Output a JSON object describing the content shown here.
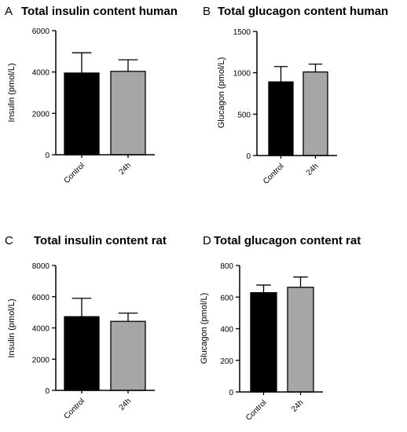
{
  "chart_data": [
    {
      "panel": "A",
      "type": "bar",
      "title": "Total insulin content human",
      "ylabel": "Insulin (pmol/L)",
      "categories": [
        "Control",
        "24h"
      ],
      "values": [
        3950,
        4030
      ],
      "errors": [
        980,
        560
      ],
      "colors": [
        "#000000",
        "#a6a6a6"
      ],
      "ylim": [
        0,
        6000
      ],
      "yticks": [
        0,
        2000,
        4000,
        6000
      ]
    },
    {
      "panel": "B",
      "type": "bar",
      "title": "Total glucagon content human",
      "ylabel": "Glucagon (pmol/L)",
      "categories": [
        "Control",
        "24h"
      ],
      "values": [
        890,
        1010
      ],
      "errors": [
        185,
        95
      ],
      "colors": [
        "#000000",
        "#a6a6a6"
      ],
      "ylim": [
        0,
        1500
      ],
      "yticks": [
        0,
        500,
        1000,
        1500
      ]
    },
    {
      "panel": "C",
      "type": "bar",
      "title": "Total insulin content rat",
      "ylabel": "Insulin (pmol/L)",
      "categories": [
        "Control",
        "24h"
      ],
      "values": [
        4720,
        4420
      ],
      "errors": [
        1180,
        530
      ],
      "colors": [
        "#000000",
        "#a6a6a6"
      ],
      "ylim": [
        0,
        8000
      ],
      "yticks": [
        0,
        2000,
        4000,
        6000,
        8000
      ]
    },
    {
      "panel": "D",
      "type": "bar",
      "title": "Total glucagon content rat",
      "ylabel": "Glucagon (pmol/L)",
      "categories": [
        "Control",
        "24h"
      ],
      "values": [
        628,
        662
      ],
      "errors": [
        48,
        65
      ],
      "colors": [
        "#000000",
        "#a6a6a6"
      ],
      "ylim": [
        0,
        800
      ],
      "yticks": [
        0,
        200,
        400,
        600,
        800
      ]
    }
  ]
}
